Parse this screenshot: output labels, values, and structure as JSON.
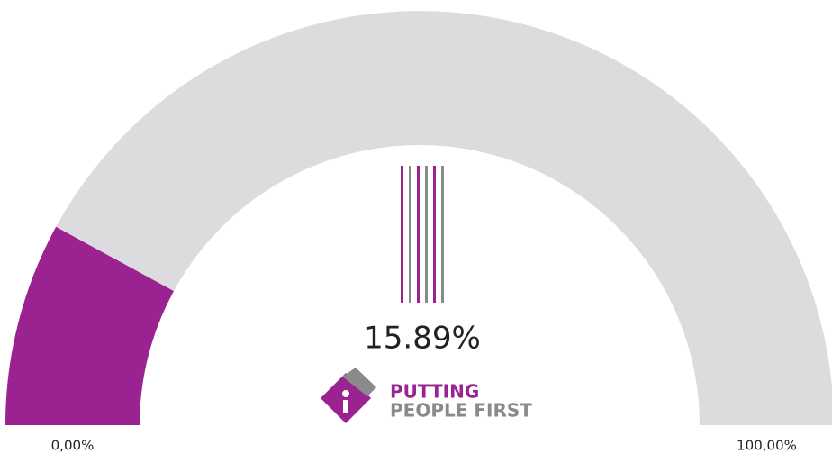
{
  "chart_data": {
    "type": "gauge",
    "value": 15.89,
    "value_label": "15.89%",
    "ylim": [
      0,
      100
    ],
    "yticks": [
      {
        "value": 0,
        "label": "0,00%"
      },
      {
        "value": 100,
        "label": "100,00%"
      }
    ],
    "color": "#9b2291",
    "track_color": "#dcdcde"
  },
  "logo": {
    "line1": "PUTTING",
    "line2": "PEOPLE FIRST"
  }
}
